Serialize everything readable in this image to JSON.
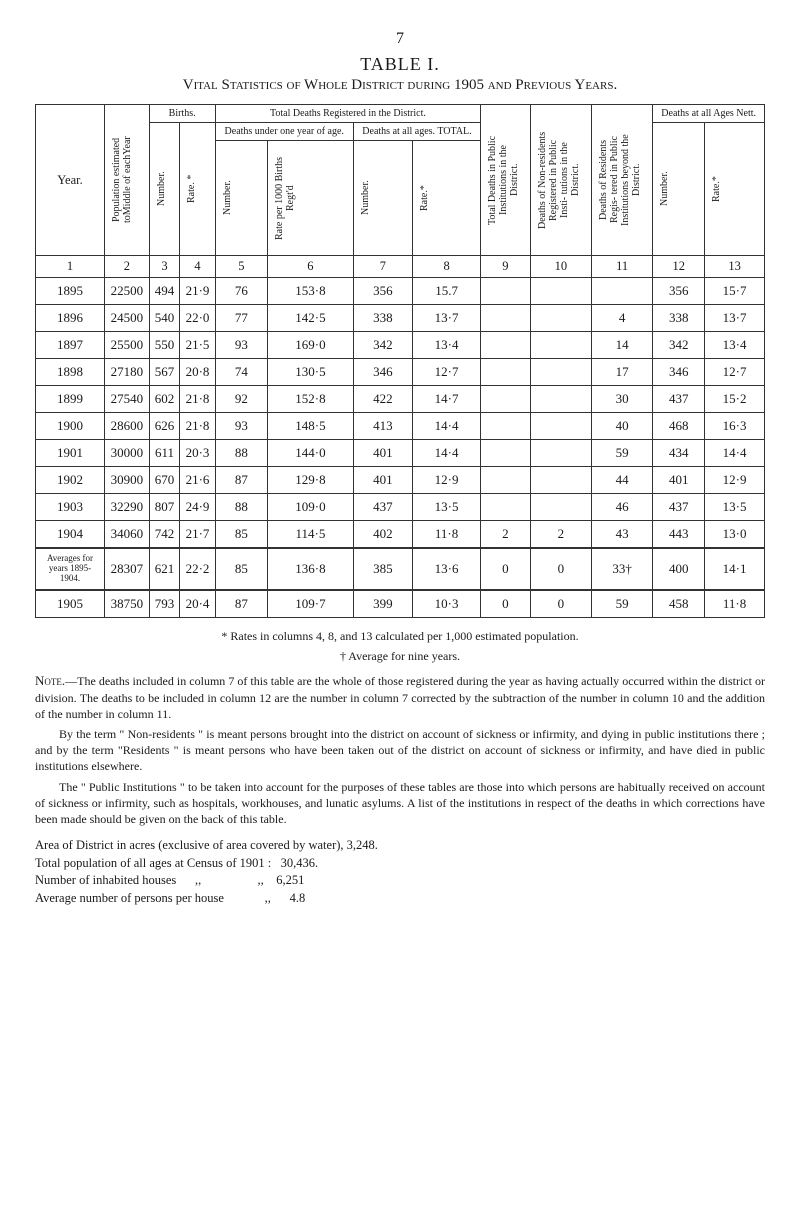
{
  "page_number": "7",
  "title": "TABLE I.",
  "subtitle": "Vital Statistics of Whole District during 1905 and Previous Years.",
  "header": {
    "year": "Year.",
    "pop": "Population estimated toMiddle of eachYear",
    "births": "Births.",
    "births_num": "Number.",
    "births_rate": "Rate. *",
    "total_deaths": "Total Deaths Registered in the District.",
    "deaths_under": "Deaths under one year of age.",
    "deaths_all": "Deaths at all ages. TOTAL.",
    "du_num": "Number.",
    "du_rate": "Rate per 1000 Births Regt'd",
    "da_num": "Number.",
    "da_rate": "Rate.*",
    "col9": "Total Deaths in Public Institutions in the District.",
    "col10": "Deaths of Non-residents Registered in Public Insti- tutions in the District.",
    "col11": "Deaths of Residents Regis- tered in Public Institutions beyond the District.",
    "deaths_at": "Deaths at all Ages Nett.",
    "dat_num": "Number.",
    "dat_rate": "Rate.*"
  },
  "colnums": [
    "1",
    "2",
    "3",
    "4",
    "5",
    "6",
    "7",
    "8",
    "9",
    "10",
    "11",
    "12",
    "13"
  ],
  "rows": [
    {
      "y": "1895",
      "c": [
        "22500",
        "494",
        "21·9",
        "76",
        "153·8",
        "356",
        "15.7",
        "",
        "",
        "",
        "356",
        "15·7"
      ]
    },
    {
      "y": "1896",
      "c": [
        "24500",
        "540",
        "22·0",
        "77",
        "142·5",
        "338",
        "13·7",
        "",
        "",
        "4",
        "338",
        "13·7"
      ]
    },
    {
      "y": "1897",
      "c": [
        "25500",
        "550",
        "21·5",
        "93",
        "169·0",
        "342",
        "13·4",
        "",
        "",
        "14",
        "342",
        "13·4"
      ]
    },
    {
      "y": "1898",
      "c": [
        "27180",
        "567",
        "20·8",
        "74",
        "130·5",
        "346",
        "12·7",
        "",
        "",
        "17",
        "346",
        "12·7"
      ]
    },
    {
      "y": "1899",
      "c": [
        "27540",
        "602",
        "21·8",
        "92",
        "152·8",
        "422",
        "14·7",
        "",
        "",
        "30",
        "437",
        "15·2"
      ]
    },
    {
      "y": "1900",
      "c": [
        "28600",
        "626",
        "21·8",
        "93",
        "148·5",
        "413",
        "14·4",
        "",
        "",
        "40",
        "468",
        "16·3"
      ]
    },
    {
      "y": "1901",
      "c": [
        "30000",
        "611",
        "20·3",
        "88",
        "144·0",
        "401",
        "14·4",
        "",
        "",
        "59",
        "434",
        "14·4"
      ]
    },
    {
      "y": "1902",
      "c": [
        "30900",
        "670",
        "21·6",
        "87",
        "129·8",
        "401",
        "12·9",
        "",
        "",
        "44",
        "401",
        "12·9"
      ]
    },
    {
      "y": "1903",
      "c": [
        "32290",
        "807",
        "24·9",
        "88",
        "109·0",
        "437",
        "13·5",
        "",
        "",
        "46",
        "437",
        "13·5"
      ]
    },
    {
      "y": "1904",
      "c": [
        "34060",
        "742",
        "21·7",
        "85",
        "114·5",
        "402",
        "11·8",
        "2",
        "2",
        "43",
        "443",
        "13·0"
      ]
    }
  ],
  "avg_row": {
    "y": "Averages for years 1895-1904.",
    "c": [
      "28307",
      "621",
      "22·2",
      "85",
      "136·8",
      "385",
      "13·6",
      "0",
      "0",
      "33†",
      "400",
      "14·1"
    ]
  },
  "row_1905": {
    "y": "1905",
    "c": [
      "38750",
      "793",
      "20·4",
      "87",
      "109·7",
      "399",
      "10·3",
      "0",
      "0",
      "59",
      "458",
      "11·8"
    ]
  },
  "footnote1": "* Rates in columns 4, 8, and 13 calculated per 1,000 estimated population.",
  "footnote2": "† Average for nine years.",
  "note_label": "Note.",
  "note_body": "—The deaths included in column 7 of this table are the whole of those registered during the year as having actually occurred within the district or division. The deaths to be included in column 12 are the number in column 7 corrected by the subtraction of the number in column 10 and the addition of the number in column 11.",
  "note_p2": "By the term \" Non-residents \" is meant persons brought into the district on account of sickness or infirmity, and dying in public institutions there ; and by the term \"Residents \" is meant persons who have been taken out of the district on account of sickness or infirmity, and have died in public institutions elsewhere.",
  "note_p3": "The \" Public Institutions \" to be taken into account for the pur­poses of these tables are those into which persons are habitually received on account of sickness or infirmity, such as hospitals, workhouses, and lunatic asylums. A list of the institutions in respect of the deaths in which corrections have been made should be given on the back of this table.",
  "bottom": {
    "l1": "Area of District in acres (exclusive of area covered by water), 3,248.",
    "l2a": "Total population of all ages at Census of 1901 :",
    "l2b": "30,436.",
    "l3a": "Number of inhabited houses",
    "l3b": "6,251",
    "l4a": "Average number of persons per house",
    "l4b": "4.8"
  }
}
